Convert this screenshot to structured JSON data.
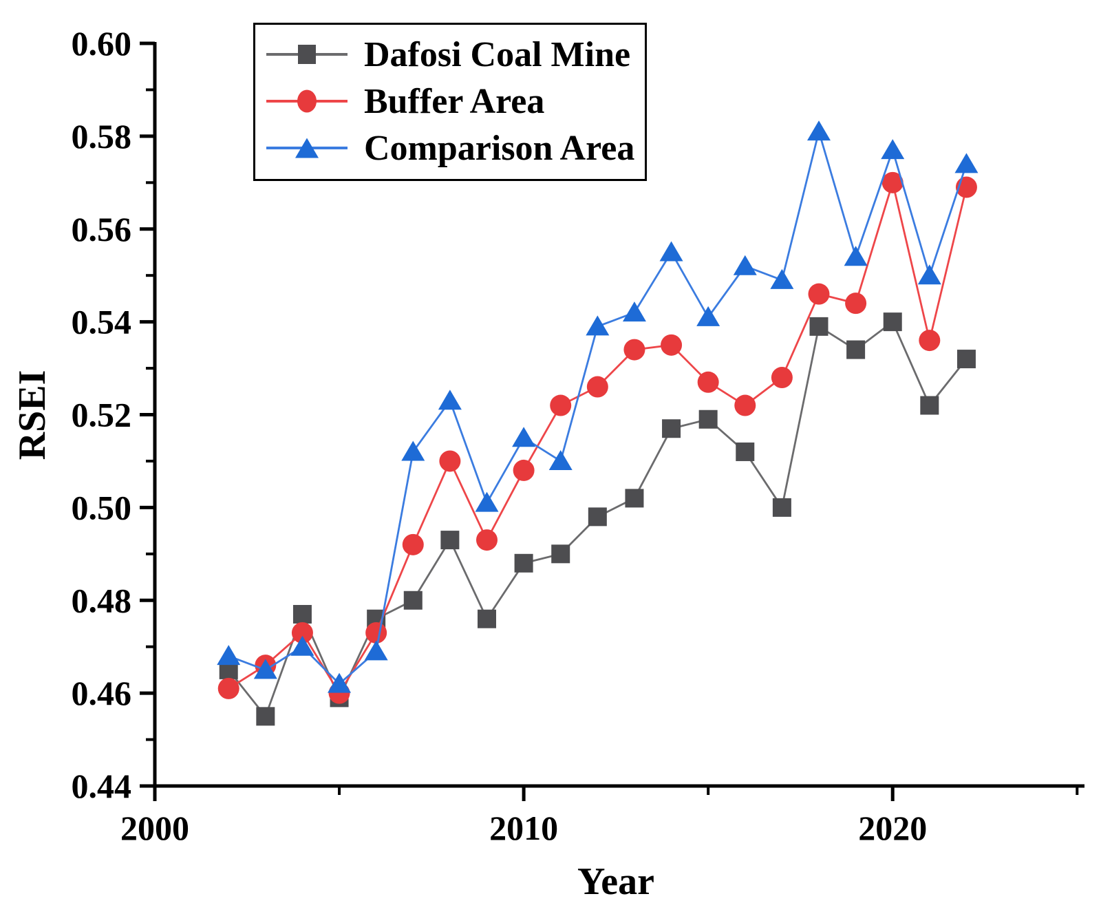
{
  "figure": {
    "background": "#ffffff",
    "axis_color": "#000000"
  },
  "chart_data": {
    "type": "line",
    "title": "",
    "xlabel": "Year",
    "ylabel": "RSEI",
    "xlim": [
      2000,
      2025.2
    ],
    "ylim": [
      0.44,
      0.6
    ],
    "grid": false,
    "legend_position": "top-left",
    "x_major_ticks": [
      {
        "value": 2000,
        "label": "2000"
      },
      {
        "value": 2010,
        "label": "2010"
      },
      {
        "value": 2020,
        "label": "2020"
      }
    ],
    "x_minor_ticks": [
      2005,
      2015,
      2025
    ],
    "y_major_ticks": [
      {
        "value": 0.44,
        "label": "0.44"
      },
      {
        "value": 0.46,
        "label": "0.46"
      },
      {
        "value": 0.48,
        "label": "0.48"
      },
      {
        "value": 0.5,
        "label": "0.50"
      },
      {
        "value": 0.52,
        "label": "0.52"
      },
      {
        "value": 0.54,
        "label": "0.54"
      },
      {
        "value": 0.56,
        "label": "0.56"
      },
      {
        "value": 0.58,
        "label": "0.58"
      },
      {
        "value": 0.6,
        "label": "0.60"
      }
    ],
    "y_minor_ticks": [
      0.45,
      0.47,
      0.49,
      0.51,
      0.53,
      0.55,
      0.57,
      0.59
    ],
    "x": [
      2002,
      2003,
      2004,
      2005,
      2006,
      2007,
      2008,
      2009,
      2010,
      2011,
      2012,
      2013,
      2014,
      2015,
      2016,
      2017,
      2018,
      2019,
      2020,
      2021,
      2022
    ],
    "series": [
      {
        "name": "Dafosi Coal Mine",
        "marker": "square",
        "marker_color": "#4d4d50",
        "line_color": "#6b6b6d",
        "values": [
          0.465,
          0.455,
          0.477,
          0.459,
          0.476,
          0.48,
          0.493,
          0.476,
          0.488,
          0.49,
          0.498,
          0.502,
          0.517,
          0.519,
          0.512,
          0.5,
          0.539,
          0.534,
          0.54,
          0.522,
          0.532
        ]
      },
      {
        "name": "Buffer Area",
        "marker": "circle",
        "marker_color": "#e73a3c",
        "line_color": "#ee4649",
        "values": [
          0.461,
          0.466,
          0.473,
          0.46,
          0.473,
          0.492,
          0.51,
          0.493,
          0.508,
          0.522,
          0.526,
          0.534,
          0.535,
          0.527,
          0.522,
          0.528,
          0.546,
          0.544,
          0.57,
          0.536,
          0.569
        ]
      },
      {
        "name": "Comparison Area",
        "marker": "triangle",
        "marker_color": "#1e6bd6",
        "line_color": "#3b7ce0",
        "values": [
          0.468,
          0.465,
          0.47,
          0.462,
          0.469,
          0.512,
          0.523,
          0.501,
          0.515,
          0.51,
          0.539,
          0.542,
          0.555,
          0.541,
          0.552,
          0.549,
          0.581,
          0.554,
          0.577,
          0.55,
          0.574
        ]
      }
    ]
  }
}
